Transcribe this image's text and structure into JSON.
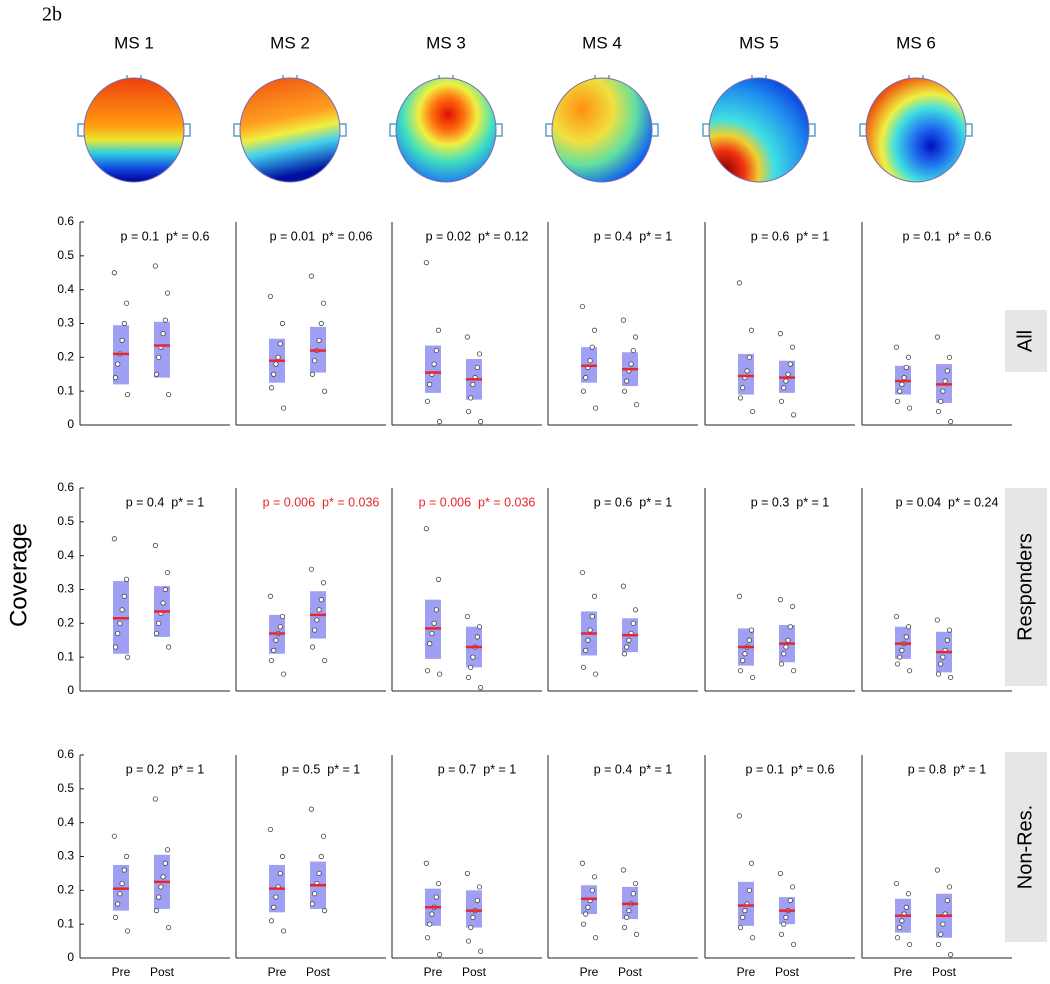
{
  "figure_label": "2b",
  "y_label": "Coverage",
  "maps": [
    "MS 1",
    "MS 2",
    "MS 3",
    "MS 4",
    "MS 5",
    "MS 6"
  ],
  "rows": [
    "All",
    "Responders",
    "Non-Res."
  ],
  "box_color": "#8e8ef2",
  "mean_color": "#e8272a",
  "chart_data": [
    {
      "type": "box",
      "title": "p = 0.1  p* = 0.6",
      "title_color": "#000000",
      "ylim": [
        0,
        0.6
      ],
      "yticks": [
        0,
        0.1,
        0.2,
        0.3,
        0.4,
        0.5,
        0.6
      ],
      "groups": [
        {
          "mean": 0.21,
          "low": 0.12,
          "high": 0.295,
          "points": [
            0.45,
            0.36,
            0.3,
            0.25,
            0.21,
            0.18,
            0.14,
            0.09
          ]
        },
        {
          "mean": 0.235,
          "low": 0.14,
          "high": 0.305,
          "points": [
            0.47,
            0.39,
            0.31,
            0.27,
            0.23,
            0.2,
            0.15,
            0.09
          ]
        }
      ]
    },
    {
      "type": "box",
      "title": "p = 0.01  p* = 0.06",
      "title_color": "#000000",
      "ylim": [
        0,
        0.6
      ],
      "groups": [
        {
          "mean": 0.19,
          "low": 0.125,
          "high": 0.255,
          "points": [
            0.38,
            0.3,
            0.24,
            0.2,
            0.18,
            0.15,
            0.11,
            0.05
          ]
        },
        {
          "mean": 0.22,
          "low": 0.155,
          "high": 0.29,
          "points": [
            0.44,
            0.36,
            0.3,
            0.25,
            0.22,
            0.19,
            0.15,
            0.1
          ]
        }
      ]
    },
    {
      "type": "box",
      "title": "p = 0.02  p* = 0.12",
      "title_color": "#000000",
      "ylim": [
        0,
        0.6
      ],
      "groups": [
        {
          "mean": 0.155,
          "low": 0.095,
          "high": 0.235,
          "points": [
            0.48,
            0.28,
            0.22,
            0.18,
            0.15,
            0.12,
            0.07,
            0.01
          ]
        },
        {
          "mean": 0.135,
          "low": 0.075,
          "high": 0.195,
          "points": [
            0.26,
            0.21,
            0.17,
            0.14,
            0.12,
            0.08,
            0.04,
            0.01
          ]
        }
      ]
    },
    {
      "type": "box",
      "title": "p = 0.4  p* = 1",
      "title_color": "#000000",
      "ylim": [
        0,
        0.6
      ],
      "groups": [
        {
          "mean": 0.175,
          "low": 0.125,
          "high": 0.23,
          "points": [
            0.35,
            0.28,
            0.23,
            0.19,
            0.17,
            0.14,
            0.1,
            0.05
          ]
        },
        {
          "mean": 0.165,
          "low": 0.115,
          "high": 0.215,
          "points": [
            0.31,
            0.26,
            0.22,
            0.18,
            0.16,
            0.13,
            0.1,
            0.06
          ]
        }
      ]
    },
    {
      "type": "box",
      "title": "p = 0.6  p* = 1",
      "title_color": "#000000",
      "ylim": [
        0,
        0.6
      ],
      "groups": [
        {
          "mean": 0.145,
          "low": 0.09,
          "high": 0.21,
          "points": [
            0.42,
            0.28,
            0.2,
            0.16,
            0.14,
            0.11,
            0.08,
            0.04
          ]
        },
        {
          "mean": 0.14,
          "low": 0.095,
          "high": 0.19,
          "points": [
            0.27,
            0.23,
            0.18,
            0.15,
            0.13,
            0.11,
            0.07,
            0.03
          ]
        }
      ]
    },
    {
      "type": "box",
      "title": "p = 0.1  p* = 0.6",
      "title_color": "#000000",
      "ylim": [
        0,
        0.6
      ],
      "groups": [
        {
          "mean": 0.13,
          "low": 0.09,
          "high": 0.175,
          "points": [
            0.23,
            0.2,
            0.17,
            0.14,
            0.12,
            0.1,
            0.07,
            0.05
          ]
        },
        {
          "mean": 0.12,
          "low": 0.065,
          "high": 0.18,
          "points": [
            0.26,
            0.2,
            0.16,
            0.13,
            0.1,
            0.07,
            0.04,
            0.01
          ]
        }
      ]
    },
    {
      "type": "box",
      "title": "p = 0.4  p* = 1",
      "title_color": "#000000",
      "ylim": [
        0,
        0.6
      ],
      "yticks": [
        0,
        0.1,
        0.2,
        0.3,
        0.4,
        0.5,
        0.6
      ],
      "groups": [
        {
          "mean": 0.215,
          "low": 0.11,
          "high": 0.325,
          "points": [
            0.45,
            0.33,
            0.28,
            0.24,
            0.2,
            0.17,
            0.13,
            0.1
          ]
        },
        {
          "mean": 0.235,
          "low": 0.16,
          "high": 0.31,
          "points": [
            0.43,
            0.35,
            0.3,
            0.26,
            0.23,
            0.2,
            0.17,
            0.13
          ]
        }
      ]
    },
    {
      "type": "box",
      "title": "p = 0.006  p* = 0.036",
      "title_color": "#e8272a",
      "ylim": [
        0,
        0.6
      ],
      "groups": [
        {
          "mean": 0.17,
          "low": 0.11,
          "high": 0.225,
          "points": [
            0.28,
            0.22,
            0.19,
            0.17,
            0.15,
            0.12,
            0.09,
            0.05
          ]
        },
        {
          "mean": 0.225,
          "low": 0.155,
          "high": 0.295,
          "points": [
            0.36,
            0.32,
            0.27,
            0.24,
            0.21,
            0.18,
            0.13,
            0.09
          ]
        }
      ]
    },
    {
      "type": "box",
      "title": "p = 0.006  p* = 0.036",
      "title_color": "#e8272a",
      "ylim": [
        0,
        0.6
      ],
      "groups": [
        {
          "mean": 0.185,
          "low": 0.095,
          "high": 0.27,
          "points": [
            0.48,
            0.33,
            0.24,
            0.2,
            0.17,
            0.14,
            0.06,
            0.05
          ]
        },
        {
          "mean": 0.13,
          "low": 0.07,
          "high": 0.19,
          "points": [
            0.22,
            0.19,
            0.16,
            0.13,
            0.1,
            0.07,
            0.04,
            0.01
          ]
        }
      ]
    },
    {
      "type": "box",
      "title": "p = 0.6  p* = 1",
      "title_color": "#000000",
      "ylim": [
        0,
        0.6
      ],
      "groups": [
        {
          "mean": 0.17,
          "low": 0.105,
          "high": 0.235,
          "points": [
            0.35,
            0.28,
            0.22,
            0.18,
            0.15,
            0.12,
            0.07,
            0.05
          ]
        },
        {
          "mean": 0.165,
          "low": 0.115,
          "high": 0.215,
          "points": [
            0.31,
            0.24,
            0.2,
            0.17,
            0.15,
            0.13,
            0.11
          ]
        }
      ]
    },
    {
      "type": "box",
      "title": "p = 0.3  p* = 1",
      "title_color": "#000000",
      "ylim": [
        0,
        0.6
      ],
      "groups": [
        {
          "mean": 0.13,
          "low": 0.075,
          "high": 0.185,
          "points": [
            0.28,
            0.18,
            0.15,
            0.13,
            0.11,
            0.09,
            0.06,
            0.04
          ]
        },
        {
          "mean": 0.14,
          "low": 0.085,
          "high": 0.195,
          "points": [
            0.27,
            0.25,
            0.19,
            0.15,
            0.13,
            0.11,
            0.08,
            0.06
          ]
        }
      ]
    },
    {
      "type": "box",
      "title": "p = 0.04  p* = 0.24",
      "title_color": "#000000",
      "ylim": [
        0,
        0.6
      ],
      "groups": [
        {
          "mean": 0.14,
          "low": 0.095,
          "high": 0.19,
          "points": [
            0.22,
            0.19,
            0.16,
            0.14,
            0.12,
            0.1,
            0.08,
            0.06
          ]
        },
        {
          "mean": 0.115,
          "low": 0.055,
          "high": 0.175,
          "points": [
            0.21,
            0.18,
            0.15,
            0.12,
            0.1,
            0.08,
            0.05,
            0.04
          ]
        }
      ]
    },
    {
      "type": "box",
      "title": "p = 0.2  p* = 1",
      "title_color": "#000000",
      "ylim": [
        0,
        0.6
      ],
      "yticks": [
        0,
        0.1,
        0.2,
        0.3,
        0.4,
        0.5,
        0.6
      ],
      "categories": [
        "Pre",
        "Post"
      ],
      "groups": [
        {
          "mean": 0.205,
          "low": 0.14,
          "high": 0.275,
          "points": [
            0.36,
            0.3,
            0.26,
            0.22,
            0.19,
            0.16,
            0.12,
            0.08
          ]
        },
        {
          "mean": 0.225,
          "low": 0.145,
          "high": 0.305,
          "points": [
            0.47,
            0.32,
            0.28,
            0.24,
            0.21,
            0.18,
            0.14,
            0.09
          ]
        }
      ]
    },
    {
      "type": "box",
      "title": "p = 0.5  p* = 1",
      "title_color": "#000000",
      "ylim": [
        0,
        0.6
      ],
      "categories": [
        "Pre",
        "Post"
      ],
      "groups": [
        {
          "mean": 0.205,
          "low": 0.135,
          "high": 0.275,
          "points": [
            0.38,
            0.3,
            0.25,
            0.21,
            0.18,
            0.15,
            0.11,
            0.08
          ]
        },
        {
          "mean": 0.215,
          "low": 0.145,
          "high": 0.285,
          "points": [
            0.44,
            0.36,
            0.3,
            0.25,
            0.22,
            0.19,
            0.16,
            0.14
          ]
        }
      ]
    },
    {
      "type": "box",
      "title": "p = 0.7  p* = 1",
      "title_color": "#000000",
      "ylim": [
        0,
        0.6
      ],
      "categories": [
        "Pre",
        "Post"
      ],
      "groups": [
        {
          "mean": 0.15,
          "low": 0.095,
          "high": 0.205,
          "points": [
            0.28,
            0.22,
            0.18,
            0.15,
            0.13,
            0.1,
            0.06,
            0.01
          ]
        },
        {
          "mean": 0.14,
          "low": 0.09,
          "high": 0.2,
          "points": [
            0.25,
            0.21,
            0.17,
            0.14,
            0.12,
            0.09,
            0.05,
            0.02
          ]
        }
      ]
    },
    {
      "type": "box",
      "title": "p = 0.4  p* = 1",
      "title_color": "#000000",
      "ylim": [
        0,
        0.6
      ],
      "categories": [
        "Pre",
        "Post"
      ],
      "groups": [
        {
          "mean": 0.175,
          "low": 0.13,
          "high": 0.215,
          "points": [
            0.28,
            0.24,
            0.2,
            0.17,
            0.15,
            0.13,
            0.1,
            0.06
          ]
        },
        {
          "mean": 0.16,
          "low": 0.115,
          "high": 0.21,
          "points": [
            0.26,
            0.22,
            0.19,
            0.16,
            0.14,
            0.12,
            0.09,
            0.07
          ]
        }
      ]
    },
    {
      "type": "box",
      "title": "p = 0.1  p* = 0.6",
      "title_color": "#000000",
      "ylim": [
        0,
        0.6
      ],
      "categories": [
        "Pre",
        "Post"
      ],
      "groups": [
        {
          "mean": 0.155,
          "low": 0.095,
          "high": 0.225,
          "points": [
            0.42,
            0.28,
            0.2,
            0.16,
            0.14,
            0.12,
            0.09,
            0.06
          ]
        },
        {
          "mean": 0.14,
          "low": 0.1,
          "high": 0.18,
          "points": [
            0.25,
            0.21,
            0.17,
            0.14,
            0.12,
            0.1,
            0.07,
            0.04
          ]
        }
      ]
    },
    {
      "type": "box",
      "title": "p = 0.8  p* = 1",
      "title_color": "#000000",
      "ylim": [
        0,
        0.6
      ],
      "categories": [
        "Pre",
        "Post"
      ],
      "groups": [
        {
          "mean": 0.125,
          "low": 0.075,
          "high": 0.175,
          "points": [
            0.22,
            0.19,
            0.15,
            0.13,
            0.11,
            0.09,
            0.06,
            0.04
          ]
        },
        {
          "mean": 0.125,
          "low": 0.06,
          "high": 0.19,
          "points": [
            0.26,
            0.21,
            0.17,
            0.13,
            0.1,
            0.07,
            0.04,
            0.01
          ]
        }
      ]
    }
  ]
}
